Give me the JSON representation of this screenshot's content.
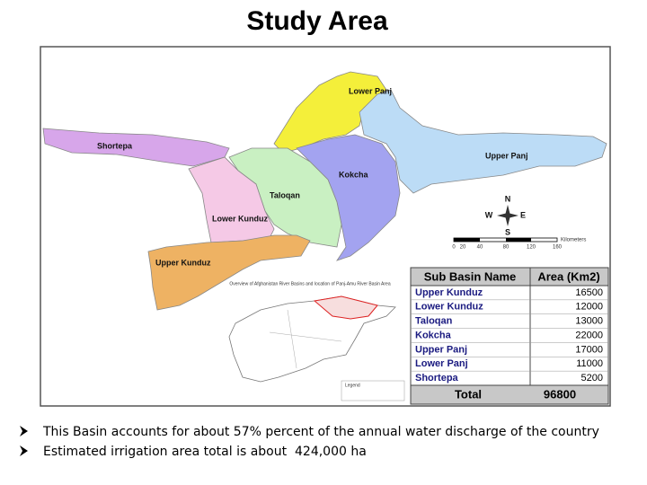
{
  "title": "Study Area",
  "map": {
    "regions": [
      "Shortepa",
      "Lower Panj",
      "Upper Panj",
      "Kokcha",
      "Taloqan",
      "Lower Kunduz",
      "Upper Kunduz"
    ],
    "compass": [
      "N",
      "W",
      "E",
      "S"
    ],
    "scale": {
      "ticks": [
        "0",
        "20",
        "40",
        "80",
        "120",
        "160"
      ],
      "unit": "Kilometers"
    },
    "inset": {
      "title": "Overview of Afghanistan River Basins and location of Panj-Amu River Basin Area",
      "legend": "Legend"
    }
  },
  "table": {
    "header": [
      "Sub Basin Name",
      "Area (Km2)"
    ],
    "rows": [
      [
        "Upper Kunduz",
        16500
      ],
      [
        "Lower Kunduz",
        12000
      ],
      [
        "Taloqan",
        13000
      ],
      [
        "Kokcha",
        22000
      ],
      [
        "Upper Panj",
        17000
      ],
      [
        "Lower Panj",
        11000
      ],
      [
        "Shortepa",
        5200
      ]
    ],
    "total": [
      "Total",
      96800
    ]
  },
  "bullets": [
    "This Basin accounts for about 57% percent of the annual water discharge of the country",
    "Estimated irrigation area total is about  424,000 ha"
  ]
}
